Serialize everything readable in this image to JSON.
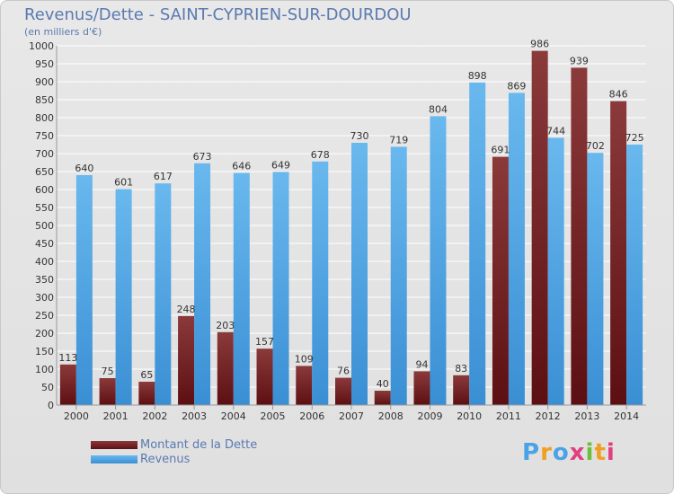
{
  "title": "Revenus/Dette - SAINT-CYPRIEN-SUR-DOURDOU",
  "subtitle": "(en milliers d'€)",
  "chart_data": {
    "type": "bar",
    "categories": [
      "2000",
      "2001",
      "2002",
      "2003",
      "2004",
      "2005",
      "2006",
      "2007",
      "2008",
      "2009",
      "2010",
      "2011",
      "2012",
      "2013",
      "2014"
    ],
    "series": [
      {
        "name": "Montant de la Dette",
        "color": "#7a1e22",
        "values": [
          113,
          75,
          65,
          248,
          203,
          157,
          109,
          76,
          40,
          94,
          83,
          691,
          986,
          939,
          846
        ]
      },
      {
        "name": "Revenus",
        "color": "#4aa3e6",
        "values": [
          640,
          601,
          617,
          673,
          646,
          649,
          678,
          730,
          719,
          804,
          898,
          869,
          744,
          702,
          725
        ]
      }
    ],
    "ylim": [
      0,
      1000
    ],
    "yticks": [
      0,
      50,
      100,
      150,
      200,
      250,
      300,
      350,
      400,
      450,
      500,
      550,
      600,
      650,
      700,
      750,
      800,
      850,
      900,
      950,
      1000
    ],
    "grid": true
  },
  "legend": {
    "dette_label": "Montant de la Dette",
    "revenus_label": "Revenus"
  },
  "logo": {
    "letters": [
      "P",
      "r",
      "o",
      "x",
      "i",
      "t",
      "i"
    ],
    "colors": [
      "#4aa3e6",
      "#f0a020",
      "#4aa3e6",
      "#e04080",
      "#6cbf3a",
      "#f0a020",
      "#e04080"
    ]
  }
}
